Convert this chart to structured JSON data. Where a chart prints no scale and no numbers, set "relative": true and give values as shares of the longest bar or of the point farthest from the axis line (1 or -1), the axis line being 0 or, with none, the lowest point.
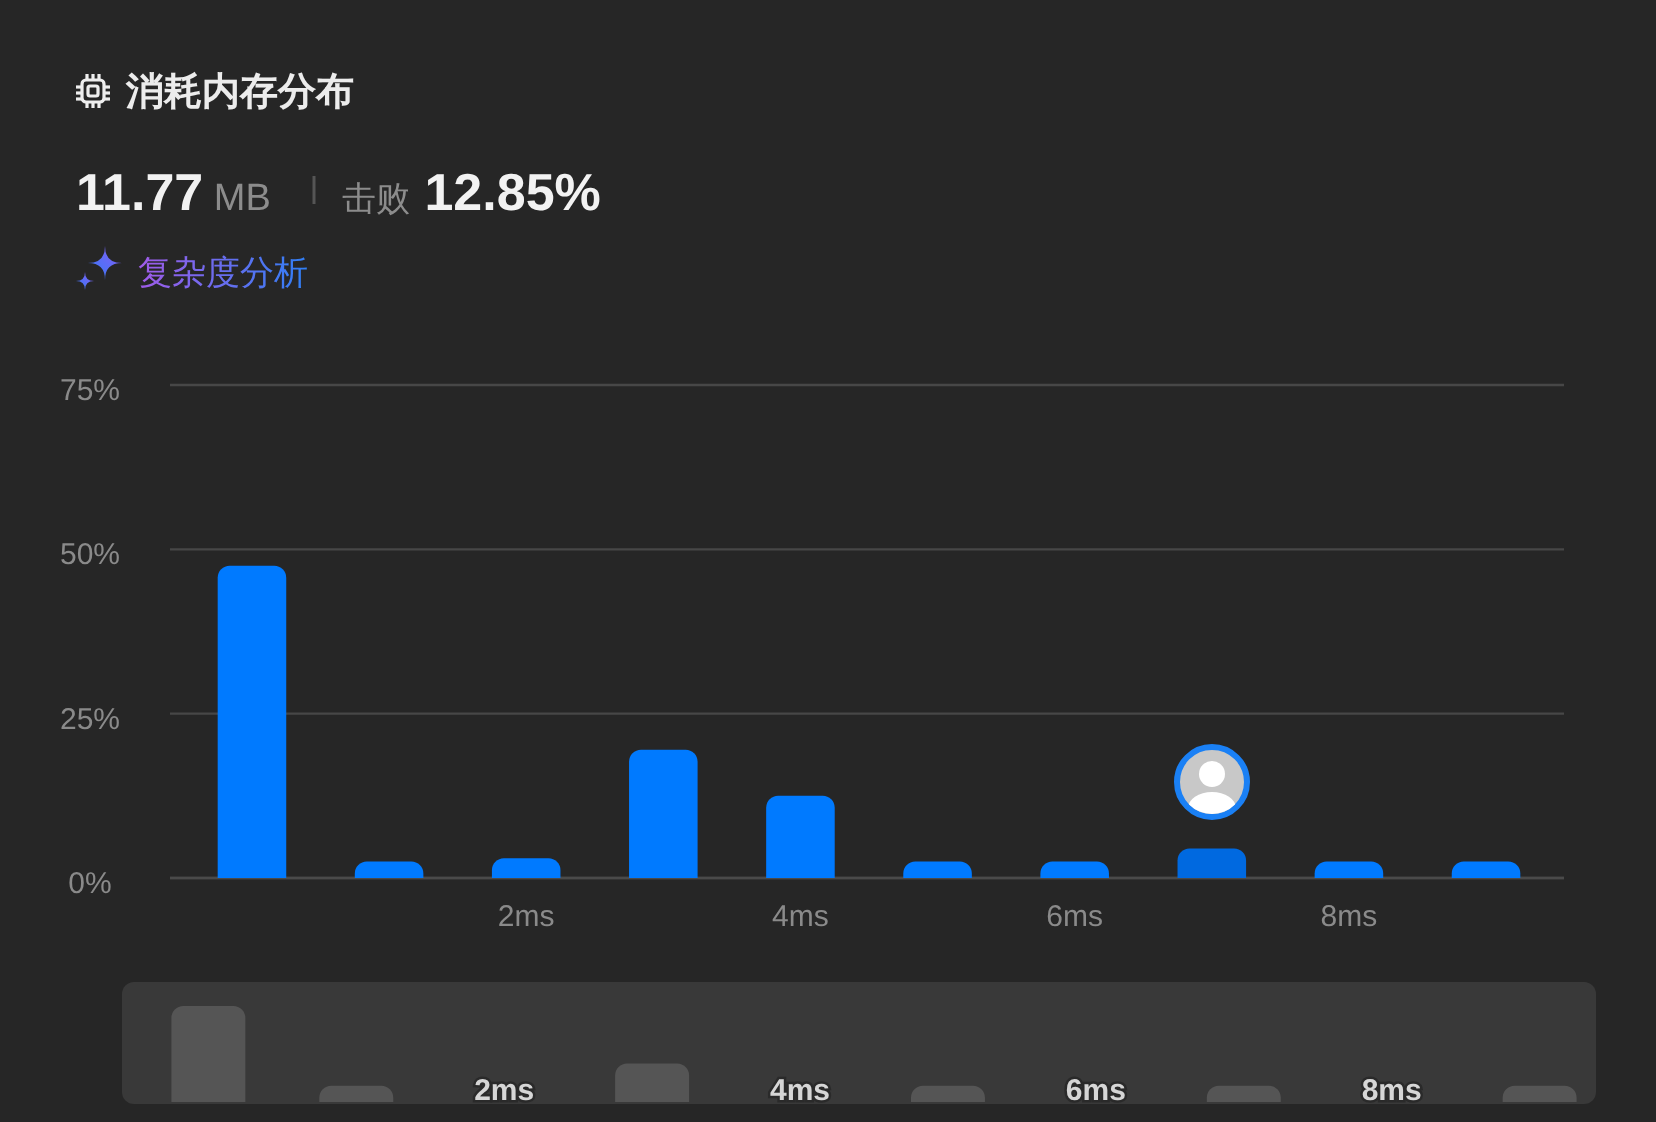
{
  "chart_data": [
    {
      "type": "bar",
      "title": "消耗内存分布",
      "annotations": [
        "11.77 MB",
        "击败 12.85%",
        "复杂度分析"
      ],
      "categories": [
        null,
        null,
        "2ms",
        null,
        "4ms",
        null,
        "6ms",
        null,
        "8ms",
        null
      ],
      "values": [
        47.5,
        2.5,
        3,
        19.5,
        12.5,
        2.5,
        2.5,
        4.5,
        2.5,
        2.5
      ],
      "colors": [
        "#007aff",
        "#007aff",
        "#007aff",
        "#007aff",
        "#007aff",
        "#007aff",
        "#007aff",
        "#0069e0",
        "#007aff",
        "#007aff"
      ],
      "ylim": [
        0,
        75
      ],
      "yticks": [
        {
          "value": 0,
          "label": "0%"
        },
        {
          "value": 25,
          "label": "25%"
        },
        {
          "value": 50,
          "label": "50%"
        },
        {
          "value": 75,
          "label": "75%"
        }
      ],
      "grid": "y"
    },
    {
      "type": "bar",
      "relative": true,
      "categories": [
        null,
        null,
        "2ms",
        null,
        "4ms",
        null,
        "6ms",
        null,
        "8ms",
        null
      ],
      "values": [
        1,
        0.17,
        null,
        0.4,
        null,
        0.17,
        null,
        0.17,
        null,
        0.17
      ],
      "color": "#555555"
    }
  ]
}
